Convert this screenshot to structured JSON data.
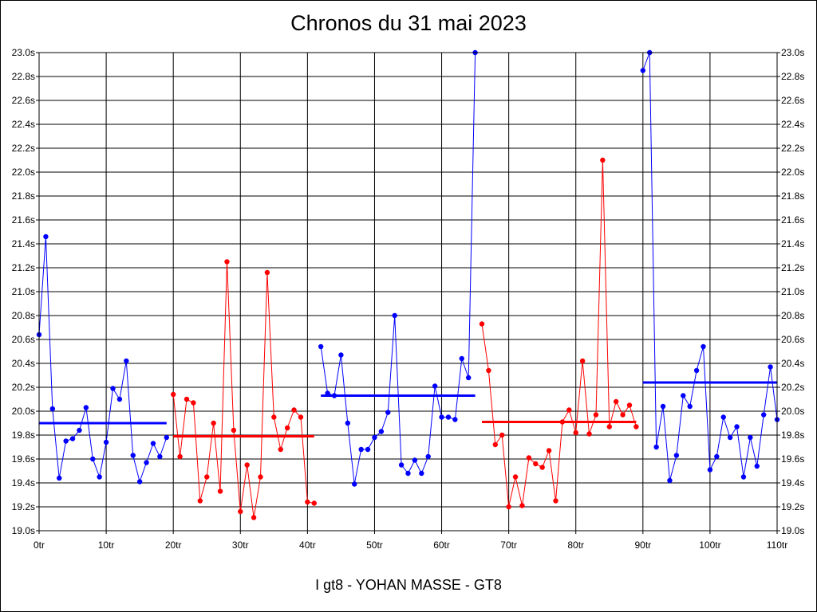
{
  "chart_data": {
    "type": "line",
    "title": "Chronos du 31 mai 2023",
    "subtitle": "I gt8 - YOHAN MASSE - GT8",
    "xlabel": "",
    "ylabel": "",
    "xlim": [
      0,
      110
    ],
    "ylim": [
      19.0,
      23.0
    ],
    "grid": true,
    "legend": "none",
    "x_ticks": [
      "0tr",
      "10tr",
      "20tr",
      "30tr",
      "40tr",
      "50tr",
      "60tr",
      "70tr",
      "80tr",
      "90tr",
      "100tr",
      "110tr"
    ],
    "y_ticks": [
      "19.0s",
      "19.2s",
      "19.4s",
      "19.6s",
      "19.8s",
      "20.0s",
      "20.2s",
      "20.4s",
      "20.6s",
      "20.8s",
      "21.0s",
      "21.2s",
      "21.4s",
      "21.6s",
      "21.8s",
      "22.0s",
      "22.2s",
      "22.4s",
      "22.6s",
      "22.8s",
      "23.0s"
    ],
    "series": [
      {
        "color": "#0000ff",
        "x": [
          0,
          1,
          2,
          3,
          4,
          5,
          6,
          7,
          8,
          9,
          10,
          11,
          12,
          13,
          14,
          15,
          16,
          17,
          18,
          19
        ],
        "values": [
          20.64,
          21.46,
          20.02,
          19.44,
          19.75,
          19.77,
          19.84,
          20.03,
          19.6,
          19.45,
          19.74,
          20.19,
          20.1,
          20.42,
          19.63,
          19.41,
          19.57,
          19.73,
          19.62,
          19.78
        ],
        "mean": 19.9
      },
      {
        "color": "#ff0000",
        "x": [
          20,
          21,
          22,
          23,
          24,
          25,
          26,
          27,
          28,
          29,
          30,
          31,
          32,
          33,
          34,
          35,
          36,
          37,
          38,
          39,
          40,
          41
        ],
        "values": [
          20.14,
          19.62,
          20.1,
          20.07,
          19.25,
          19.45,
          19.9,
          19.33,
          21.25,
          19.84,
          19.16,
          19.55,
          19.11,
          19.45,
          21.16,
          19.95,
          19.68,
          19.86,
          20.01,
          19.95,
          19.24,
          19.23
        ],
        "mean": 19.79
      },
      {
        "color": "#0000ff",
        "x": [
          42,
          43,
          44,
          45,
          46,
          47,
          48,
          49,
          50,
          51,
          52,
          53,
          54,
          55,
          56,
          57,
          58,
          59,
          60,
          61,
          62,
          63,
          64,
          65
        ],
        "values": [
          20.54,
          20.15,
          20.13,
          20.47,
          19.9,
          19.39,
          19.68,
          19.68,
          19.78,
          19.83,
          19.99,
          20.8,
          19.55,
          19.48,
          19.59,
          19.48,
          19.62,
          20.21,
          19.95,
          19.95,
          19.93,
          20.44,
          20.28,
          23.0
        ],
        "mean": 20.13
      },
      {
        "color": "#ff0000",
        "x": [
          66,
          67,
          68,
          69,
          70,
          71,
          72,
          73,
          74,
          75,
          76,
          77,
          78,
          79,
          80,
          81,
          82,
          83,
          84,
          85,
          86,
          87,
          88,
          89
        ],
        "values": [
          20.73,
          20.34,
          19.72,
          19.8,
          19.2,
          19.45,
          19.21,
          19.61,
          19.56,
          19.53,
          19.67,
          19.25,
          19.91,
          20.01,
          19.82,
          20.42,
          19.81,
          19.97,
          22.1,
          19.87,
          20.08,
          19.97,
          20.05,
          19.87
        ],
        "mean": 19.91
      },
      {
        "color": "#0000ff",
        "x": [
          90,
          91,
          92,
          93,
          94,
          95,
          96,
          97,
          98,
          99,
          100,
          101,
          102,
          103,
          104,
          105,
          106,
          107,
          108,
          109,
          110
        ],
        "values": [
          22.85,
          23.0,
          19.7,
          20.04,
          19.42,
          19.63,
          20.13,
          20.04,
          20.34,
          20.54,
          19.51,
          19.62,
          19.95,
          19.78,
          19.87,
          19.45,
          19.78,
          19.54,
          19.97,
          20.37,
          19.93
        ],
        "mean": 20.24
      }
    ]
  }
}
